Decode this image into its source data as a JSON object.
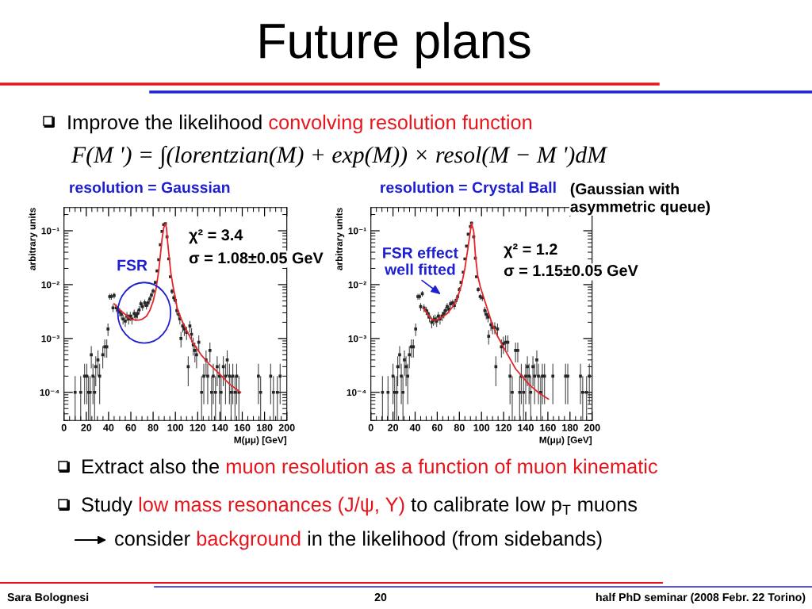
{
  "chart_data": [
    {
      "type": "other",
      "title": "Future plans",
      "annotations": [
        "Improve the likelihood",
        "convolving resolution function",
        "F(M ') = ∫(lorentzian(M) + exp(M)) × resol(M − M ')dM"
      ]
    },
    {
      "type": "scatter",
      "title": "resolution = Gaussian",
      "xlabel": "M(μμ) [GeV]",
      "ylabel": "arbitrary units",
      "log": "y",
      "xlim": [
        0,
        200
      ],
      "ylim": [
        3e-05,
        0.27
      ],
      "xticks": [
        0,
        20,
        40,
        60,
        80,
        100,
        120,
        140,
        160,
        180,
        200
      ],
      "yticks": [
        {
          "value": 0.0001,
          "label": "10⁻⁴"
        },
        {
          "value": 0.001,
          "label": "10⁻³"
        },
        {
          "value": 0.01,
          "label": "10⁻²"
        },
        {
          "value": 0.1,
          "label": "10⁻¹"
        }
      ],
      "series": [
        {
          "type": "scatter",
          "color": "#262626",
          "marker": "square",
          "x": [
            10,
            15,
            18.5,
            20.5,
            22,
            23.5,
            24.5,
            26,
            27.5,
            28.5,
            30.5,
            32,
            34.8,
            36.6,
            38.4,
            39.5,
            41,
            42.5,
            44,
            45,
            47,
            48.5,
            50,
            51.5,
            53,
            55,
            56.5,
            58,
            59.5,
            61,
            63,
            64.5,
            66,
            67.5,
            69,
            70.5,
            72.5,
            74,
            75.5,
            77,
            78.5,
            80,
            82,
            83.5,
            85,
            86.5,
            88,
            89.5,
            91,
            92.5,
            94,
            95.5,
            97,
            98.5,
            100,
            101.3,
            102.9,
            104,
            105,
            106.5,
            108,
            110,
            111.5,
            113,
            114.5,
            116,
            117.5,
            119,
            121,
            123.5,
            125.5,
            127.5,
            129,
            131,
            132.5,
            134,
            136,
            137.5,
            139.5,
            141,
            143,
            145,
            146.5,
            148.5,
            150,
            151.5,
            153.5,
            155,
            157,
            174.5,
            176.5,
            185.5,
            188,
            191.5,
            194
          ],
          "values": [
            0.0001,
            0.0001,
            0.0002,
            0.0002,
            0.0001,
            0.0001,
            0.0005,
            0.0002,
            0.0001,
            0.0003,
            0.0004,
            0.0002,
            0.0005,
            0.0007,
            0.0007,
            0.0015,
            0.006,
            0.006,
            0.0037,
            0.0063,
            0.0037,
            0.0034,
            0.0031,
            0.0028,
            0.0023,
            0.0021,
            0.0026,
            0.0023,
            0.0026,
            0.0023,
            0.0029,
            0.0026,
            0.0029,
            0.0034,
            0.0044,
            0.0039,
            0.0046,
            0.0041,
            0.0046,
            0.0054,
            0.0064,
            0.0076,
            0.011,
            0.018,
            0.029,
            0.055,
            0.097,
            0.13,
            0.135,
            0.077,
            0.03,
            0.014,
            0.0075,
            0.0057,
            0.0051,
            0.0033,
            0.0028,
            0.0023,
            0.001,
            0.0017,
            0.0015,
            0.0013,
            0.0003,
            0.0017,
            0.0012,
            0.00076,
            0.0006,
            0.0005,
            0.00085,
            0.0001,
            0.0002,
            0.0004,
            0.0002,
            0.0006,
            0.0001,
            0.0002,
            0.0001,
            0.0003,
            0.0002,
            0.0001,
            0.0003,
            0.0002,
            0.0004,
            0.0002,
            0.0001,
            0.0002,
            0.0001,
            0.0002,
            0.0001,
            0.0002,
            0.0001,
            0.0002,
            0.0001,
            0.0001,
            0.0002
          ],
          "errors": [
            [
              3e-05,
              0.0002
            ],
            [
              3e-05,
              0.0002
            ],
            0.00014,
            0.00014,
            [
              3e-05,
              0.0002
            ],
            [
              3e-05,
              0.0002
            ],
            0.00022,
            0.00014,
            [
              3e-05,
              0.0002
            ],
            0.00017,
            0.0002,
            0.00014,
            0.00022,
            0.00026,
            0.00026,
            0.00039,
            0.00077,
            0.00077,
            0.00061,
            0.00079,
            0.00061,
            0.00058,
            0.00056,
            0.00053,
            0.00048,
            0.00046,
            0.00051,
            0.00048,
            0.00051,
            0.00048,
            0.00054,
            0.00051,
            0.00054,
            0.00058,
            0.00066,
            0.00062,
            0.00068,
            0.00064,
            0.00068,
            0.00073,
            0.0008,
            0.00087,
            null,
            null,
            null,
            null,
            null,
            null,
            null,
            null,
            null,
            null,
            0.00087,
            0.00075,
            0.00071,
            0.00057,
            0.00053,
            0.00048,
            0.00032,
            0.00041,
            0.00039,
            0.00036,
            0.00017,
            0.00041,
            0.00035,
            0.00028,
            0.00024,
            0.00022,
            0.00029,
            [
              3e-05,
              0.0002
            ],
            0.00014,
            0.0002,
            0.00014,
            0.00024,
            [
              3e-05,
              0.0002
            ],
            0.00014,
            [
              3e-05,
              0.0002
            ],
            0.00017,
            0.00014,
            [
              3e-05,
              0.0002
            ],
            0.00017,
            0.00014,
            0.0002,
            0.00014,
            [
              3e-05,
              0.0002
            ],
            0.00014,
            [
              3e-05,
              0.0002
            ],
            0.00014,
            [
              3e-05,
              0.0002
            ],
            0.00014,
            [
              3e-05,
              0.0002
            ],
            0.00014,
            [
              3e-05,
              0.0002
            ],
            [
              3e-05,
              0.0002
            ],
            0.00014
          ]
        },
        {
          "type": "line",
          "color": "#e3262b",
          "x": [
            45,
            50,
            55,
            59.5,
            64,
            67.5,
            70.5,
            74,
            77,
            80,
            82.5,
            85,
            86.5,
            88,
            89.5,
            91,
            92,
            93,
            94.5,
            96,
            98,
            100,
            101.5,
            106,
            111,
            115.5,
            123,
            130,
            139.5,
            149,
            158.5
          ],
          "values": [
            0.0044,
            0.0034,
            0.0028,
            0.0023,
            0.0022,
            0.0022,
            0.0023,
            0.0026,
            0.0033,
            0.0049,
            0.0081,
            0.018,
            0.035,
            0.069,
            0.114,
            0.135,
            0.114,
            0.062,
            0.031,
            0.016,
            0.009,
            0.0057,
            0.0037,
            0.0021,
            0.0013,
            0.00085,
            0.0005,
            0.00034,
            0.00022,
            0.00014,
            0.0001
          ]
        }
      ],
      "annotations": [
        {
          "text": "FSR",
          "x": 72,
          "y": 0.003
        },
        "χ² = 3.4",
        "σ = 1.08±0.05 GeV"
      ]
    },
    {
      "type": "scatter",
      "title": "resolution = Crystal Ball",
      "subtitle": "(Gaussian with\nasymmetric queue)",
      "xlabel": "M(μμ) [GeV]",
      "ylabel": "arbitrary units",
      "log": "y",
      "xlim": [
        0,
        200
      ],
      "ylim": [
        3e-05,
        0.27
      ],
      "xticks": [
        0,
        20,
        40,
        60,
        80,
        100,
        120,
        140,
        160,
        180,
        200
      ],
      "yticks": [
        {
          "value": 0.0001,
          "label": "10⁻⁴"
        },
        {
          "value": 0.001,
          "label": "10⁻³"
        },
        {
          "value": 0.01,
          "label": "10⁻²"
        },
        {
          "value": 0.1,
          "label": "10⁻¹"
        }
      ],
      "series": [
        {
          "type": "scatter",
          "color": "#262626",
          "marker": "square",
          "x": [
            10.5,
            15.5,
            20,
            21.5,
            23.5,
            24.3,
            26,
            27.5,
            29,
            30.3,
            31.8,
            33.3,
            34.8,
            36.6,
            38.4,
            40.5,
            42.5,
            44,
            45,
            46.5,
            48,
            50,
            51.5,
            53,
            55,
            56.5,
            58,
            59.5,
            61,
            62.5,
            64.5,
            66,
            67.5,
            69,
            70.5,
            72,
            74,
            75.5,
            77,
            78.5,
            80,
            81.5,
            83.5,
            85,
            86.5,
            88,
            90,
            91,
            93,
            94.5,
            95.5,
            97,
            98.8,
            100.8,
            103,
            104.3,
            105.9,
            106.5,
            108.5,
            110,
            112,
            113,
            114.5,
            118,
            119.8,
            121.8,
            123.8,
            125.8,
            127.8,
            130.8,
            132.8,
            134.5,
            136,
            138,
            140,
            141.5,
            143,
            144.5,
            146.5,
            148,
            150,
            151.5,
            153.5,
            155,
            157,
            164.5,
            176,
            178,
            189.5,
            191.5,
            195,
            197.5
          ],
          "values": [
            0.0001,
            0.0001,
            0.0002,
            0.0001,
            0.0001,
            0.0003,
            0.0005,
            0.0002,
            0.0001,
            0.0004,
            0.0003,
            0.0002,
            0.0005,
            0.0007,
            0.0007,
            0.0015,
            0.006,
            0.006,
            0.0039,
            0.0068,
            0.0037,
            0.0033,
            0.0029,
            0.0025,
            0.002,
            0.0022,
            0.0023,
            0.0021,
            0.0026,
            0.0023,
            0.0026,
            0.0029,
            0.0033,
            0.0039,
            0.0035,
            0.0044,
            0.0046,
            0.0041,
            0.0051,
            0.006,
            0.0081,
            0.011,
            0.017,
            0.03,
            0.052,
            0.086,
            0.12,
            0.139,
            0.077,
            0.031,
            0.014,
            0.0081,
            0.006,
            0.0057,
            0.0033,
            0.0028,
            0.0025,
            0.0011,
            0.0018,
            0.0016,
            0.0016,
            0.0003,
            0.0015,
            0.0007,
            0.0008,
            0.00085,
            0.00085,
            0.0002,
            0.0001,
            0.0006,
            0.0006,
            0.0001,
            0.0002,
            0.0001,
            0.0002,
            0.0003,
            0.0002,
            0.0001,
            0.0003,
            0.0002,
            0.0004,
            0.0002,
            0.0001,
            0.0002,
            0.0002,
            0.0002,
            0.0002,
            0.0002,
            0.0002,
            0.0001,
            0.0001,
            0.0002
          ],
          "errors": [
            [
              3e-05,
              0.0002
            ],
            [
              3e-05,
              0.0002
            ],
            0.00014,
            [
              3e-05,
              0.0002
            ],
            [
              3e-05,
              0.0002
            ],
            0.00017,
            0.00022,
            0.00014,
            [
              3e-05,
              0.0002
            ],
            0.0002,
            0.00017,
            0.00014,
            0.00022,
            0.00026,
            0.00026,
            0.00039,
            0.00077,
            0.00077,
            0.00062,
            0.00082,
            0.00061,
            0.00057,
            0.00054,
            0.0005,
            0.00045,
            0.00047,
            0.00048,
            0.00046,
            0.00051,
            0.00048,
            0.00051,
            0.00054,
            0.00057,
            0.00062,
            0.00059,
            0.00066,
            0.00068,
            0.00064,
            0.00071,
            0.00077,
            0.0009,
            null,
            null,
            null,
            null,
            null,
            null,
            null,
            null,
            null,
            null,
            0.0009,
            0.00077,
            0.00075,
            0.00057,
            0.00053,
            0.0005,
            0.00033,
            0.00042,
            0.0004,
            0.0004,
            0.00017,
            0.00039,
            0.00026,
            0.00028,
            0.00029,
            0.00029,
            0.00014,
            [
              3e-05,
              0.0002
            ],
            0.00024,
            0.00024,
            [
              3e-05,
              0.0002
            ],
            0.00014,
            [
              3e-05,
              0.0002
            ],
            0.00014,
            0.00017,
            0.00014,
            [
              3e-05,
              0.0002
            ],
            0.00017,
            0.00014,
            0.0002,
            0.00014,
            [
              3e-05,
              0.0002
            ],
            0.00014,
            0.00014,
            0.00014,
            0.00014,
            0.00014,
            0.00014,
            [
              3e-05,
              0.0002
            ],
            [
              3e-05,
              0.0002
            ],
            0.00014
          ]
        },
        {
          "type": "line",
          "color": "#e3262b",
          "x": [
            47.5,
            52.5,
            56,
            59.5,
            64.5,
            69,
            74,
            78.5,
            82,
            85,
            87.5,
            90,
            91,
            93,
            94.5,
            96.5,
            99,
            105,
            109.5,
            114.5,
            121.5,
            131,
            143,
            152.5,
            160.5
          ],
          "values": [
            0.0037,
            0.0026,
            0.0022,
            0.0022,
            0.0025,
            0.0029,
            0.0039,
            0.0058,
            0.01,
            0.02,
            0.044,
            0.1,
            0.139,
            0.097,
            0.035,
            0.015,
            0.009,
            0.0037,
            0.0019,
            0.0011,
            0.0006,
            0.00027,
            0.00014,
            9.5e-05,
            7.5e-05
          ]
        }
      ],
      "annotations": [
        "FSR effect\nwell fitted",
        "χ² = 1.2",
        "σ = 1.15±0.05 GeV"
      ]
    },
    {
      "type": "other",
      "annotations": [
        "Extract also the",
        "muon resolution as a function of muon kinematic",
        "Study",
        "low mass resonances (J/ψ, Υ)",
        "to calibrate low p$_{T}$ muons",
        "consider",
        "background",
        "in the likelihood (from sidebands)",
        "Sara Bolognesi",
        "20",
        "half PhD seminar (2008 Febr. 22 Torino)"
      ]
    }
  ]
}
